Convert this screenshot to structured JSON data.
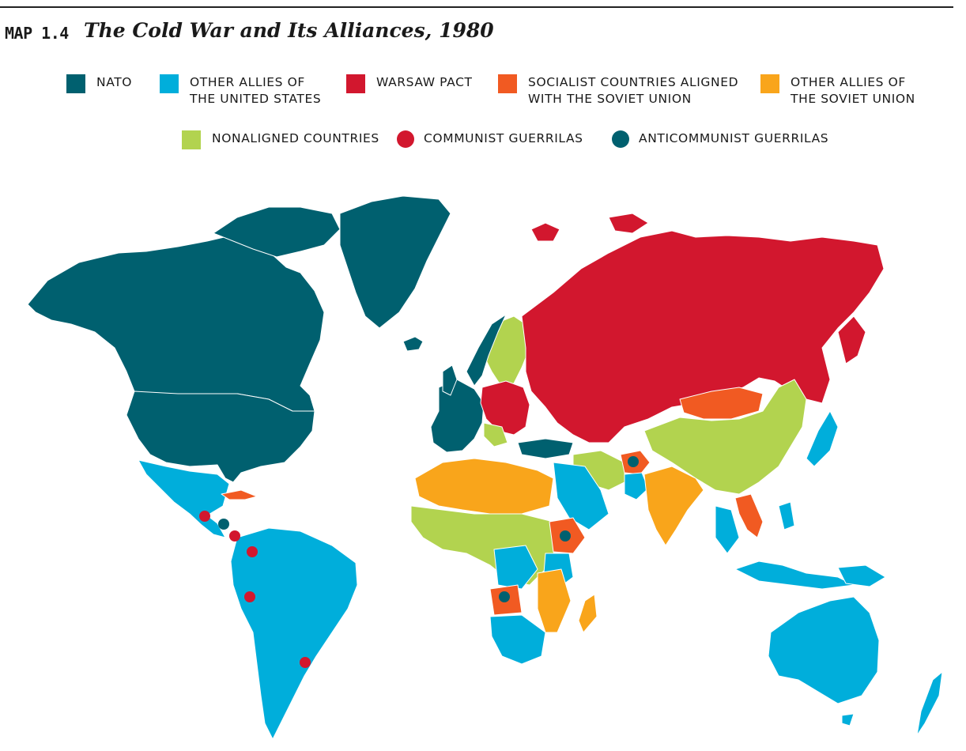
{
  "header": {
    "label": "MAP 1.4",
    "title": "The Cold War and Its Alliances, 1980"
  },
  "legend": {
    "nato": {
      "line1": "NATO",
      "color": "#00606f"
    },
    "us_allies": {
      "line1": "OTHER ALLIES OF",
      "line2": "THE UNITED STATES",
      "color": "#00aedb"
    },
    "warsaw": {
      "line1": "WARSAW PACT",
      "color": "#d2172e"
    },
    "socialist": {
      "line1": "SOCIALIST COUNTRIES ALIGNED",
      "line2": "WITH THE SOVIET UNION",
      "color": "#f15a22"
    },
    "soviet_allies": {
      "line1": "OTHER ALLIES OF",
      "line2": "THE SOVIET UNION",
      "color": "#f9a51b"
    },
    "nonaligned": {
      "line1": "NONALIGNED COUNTRIES",
      "color": "#b2d34f"
    },
    "communist_guerrillas": {
      "line1": "COMMUNIST GUERRILAS",
      "color": "#d2172e"
    },
    "anticommunist_guerrillas": {
      "line1": "ANTICOMMUNIST GUERRILAS",
      "color": "#00606f"
    }
  }
}
